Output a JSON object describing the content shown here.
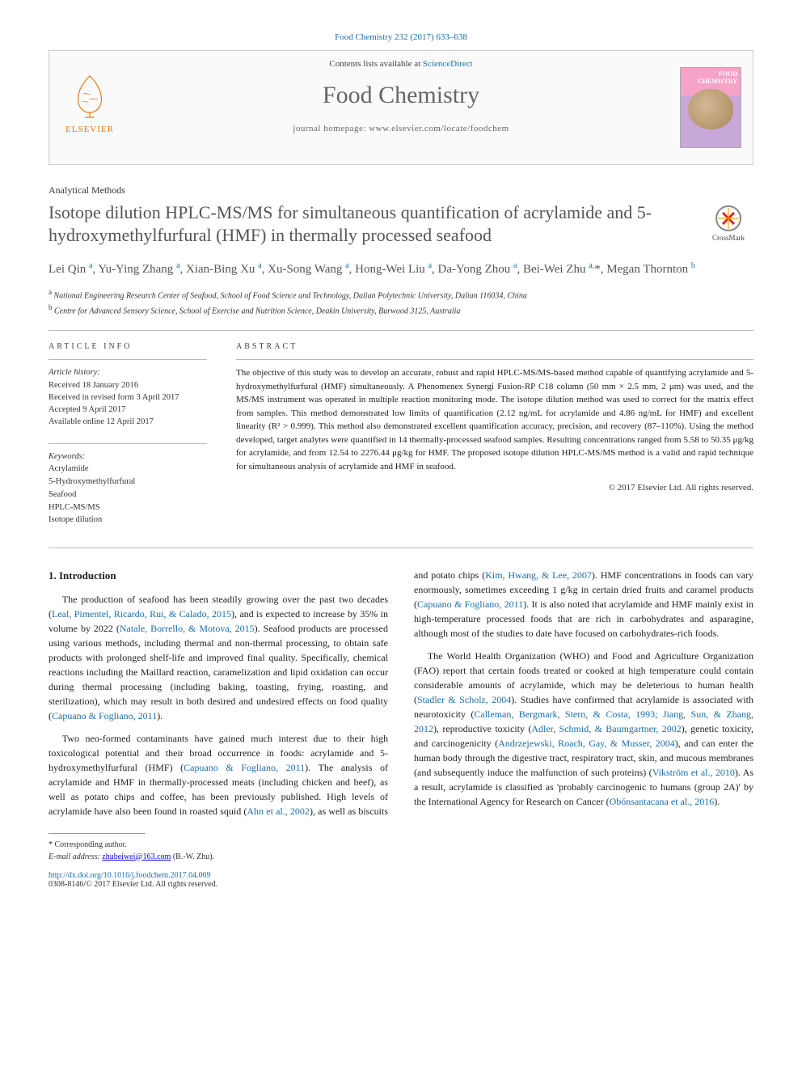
{
  "citation": "Food Chemistry 232 (2017) 633–638",
  "header": {
    "contents_prefix": "Contents lists available at ",
    "contents_link": "ScienceDirect",
    "journal": "Food Chemistry",
    "homepage_prefix": "journal homepage: ",
    "homepage": "www.elsevier.com/locate/foodchem",
    "publisher": "ELSEVIER",
    "cover_title": "FOOD CHEMISTRY"
  },
  "article": {
    "type": "Analytical Methods",
    "title": "Isotope dilution HPLC-MS/MS for simultaneous quantification of acrylamide and 5-hydroxymethylfurfural (HMF) in thermally processed seafood",
    "crossmark": "CrossMark",
    "authors_html": "Lei Qin <sup>a</sup>, Yu-Ying Zhang <sup>a</sup>, Xian-Bing Xu <sup>a</sup>, Xu-Song Wang <sup>a</sup>, Hong-Wei Liu <sup>a</sup>, Da-Yong Zhou <sup>a</sup>, Bei-Wei Zhu <sup>a,</sup>*, Megan Thornton <sup>b</sup>",
    "affiliations": {
      "a": "National Engineering Research Center of Seafood, School of Food Science and Technology, Dalian Polytechnic University, Dalian 116034, China",
      "b": "Centre for Advanced Sensory Science, School of Exercise and Nutrition Science, Deakin University, Burwood 3125, Australia"
    }
  },
  "info": {
    "heading": "article info",
    "history_label": "Article history:",
    "history": {
      "received": "Received 18 January 2016",
      "revised": "Received in revised form 3 April 2017",
      "accepted": "Accepted 9 April 2017",
      "online": "Available online 12 April 2017"
    },
    "keywords_label": "Keywords:",
    "keywords": [
      "Acrylamide",
      "5-Hydroxymethylfurfural",
      "Seafood",
      "HPLC-MS/MS",
      "Isotope dilution"
    ]
  },
  "abstract": {
    "heading": "abstract",
    "text": "The objective of this study was to develop an accurate, robust and rapid HPLC-MS/MS-based method capable of quantifying acrylamide and 5-hydroxymethylfurfural (HMF) simultaneously. A Phenomenex Synergi Fusion-RP C18 column (50 mm × 2.5 mm, 2 μm) was used, and the MS/MS instrument was operated in multiple reaction monitoring mode. The isotope dilution method was used to correct for the matrix effect from samples. This method demonstrated low limits of quantification (2.12 ng/mL for acrylamide and 4.86 ng/mL for HMF) and excellent linearity (R² > 0.999). This method also demonstrated excellent quantification accuracy, precision, and recovery (87–110%). Using the method developed, target analytes were quantified in 14 thermally-processed seafood samples. Resulting concentrations ranged from 5.58 to 50.35 μg/kg for acrylamide, and from 12.54 to 2276.44 μg/kg for HMF. The proposed isotope dilution HPLC-MS/MS method is a valid and rapid technique for simultaneous analysis of acrylamide and HMF in seafood.",
    "copyright": "© 2017 Elsevier Ltd. All rights reserved."
  },
  "body": {
    "section_heading": "1. Introduction",
    "p1": "The production of seafood has been steadily growing over the past two decades (<a href='#'>Leal, Pimentel, Ricardo, Rui, & Calado, 2015</a>), and is expected to increase by 35% in volume by 2022 (<a href='#'>Natale, Borrello, & Motova, 2015</a>). Seafood products are processed using various methods, including thermal and non-thermal processing, to obtain safe products with prolonged shelf-life and improved final quality. Specifically, chemical reactions including the Maillard reaction, caramelization and lipid oxidation can occur during thermal processing (including baking, toasting, frying, roasting, and sterilization), which may result in both desired and undesired effects on food quality (<a href='#'>Capuano & Fogliano, 2011</a>).",
    "p2": "Two neo-formed contaminants have gained much interest due to their high toxicological potential and their broad occurrence in foods: acrylamide and 5-hydroxymethylfurfural (HMF) (<a href='#'>Capuano & Fogliano, 2011</a>). The analysis of acrylamide and HMF in thermally-processed meats (including chicken and beef), as well as potato chips and coffee, has been previously published. High levels of acrylamide have also been found in roasted squid (<a href='#'>Ahn et al., 2002</a>), as well as biscuits and potato chips (<a href='#'>Kim, Hwang, & Lee, 2007</a>). HMF concentrations in foods can vary enormously, sometimes exceeding 1 g/kg in certain dried fruits and caramel products (<a href='#'>Capuano & Fogliano, 2011</a>). It is also noted that acrylamide and HMF mainly exist in high-temperature processed foods that are rich in carbohydrates and asparagine, although most of the studies to date have focused on carbohydrates-rich foods.",
    "p3": "The World Health Organization (WHO) and Food and Agriculture Organization (FAO) report that certain foods treated or cooked at high temperature could contain considerable amounts of acrylamide, which may be deleterious to human health (<a href='#'>Stadler & Scholz, 2004</a>). Studies have confirmed that acrylamide is associated with neurotoxicity (<a href='#'>Calleman, Bergmark, Stern, & Costa, 1993; Jiang, Sun, & Zhang, 2012</a>), reproductive toxicity (<a href='#'>Adler, Schmid, & Baumgartner, 2002</a>), genetic toxicity, and carcinogenicity (<a href='#'>Andrzejewski, Roach, Gay, & Musser, 2004</a>), and can enter the human body through the digestive tract, respiratory tract, skin, and mucous membranes (and subsequently induce the malfunction of such proteins) (<a href='#'>Vikström et al., 2010</a>). As a result, acrylamide is classified as 'probably carcinogenic to humans (group 2A)' by the International Agency for Research on Cancer (<a href='#'>Obónsantacana et al., 2016</a>)."
  },
  "footer": {
    "corr_label": "* Corresponding author.",
    "email_label": "E-mail address: ",
    "email": "zhubeiwei@163.com",
    "email_suffix": " (B.-W. Zhu).",
    "doi_prefix": "http://dx.doi.org/",
    "doi": "10.1016/j.foodchem.2017.04.069",
    "issn_line": "0308-8146/© 2017 Elsevier Ltd. All rights reserved."
  }
}
